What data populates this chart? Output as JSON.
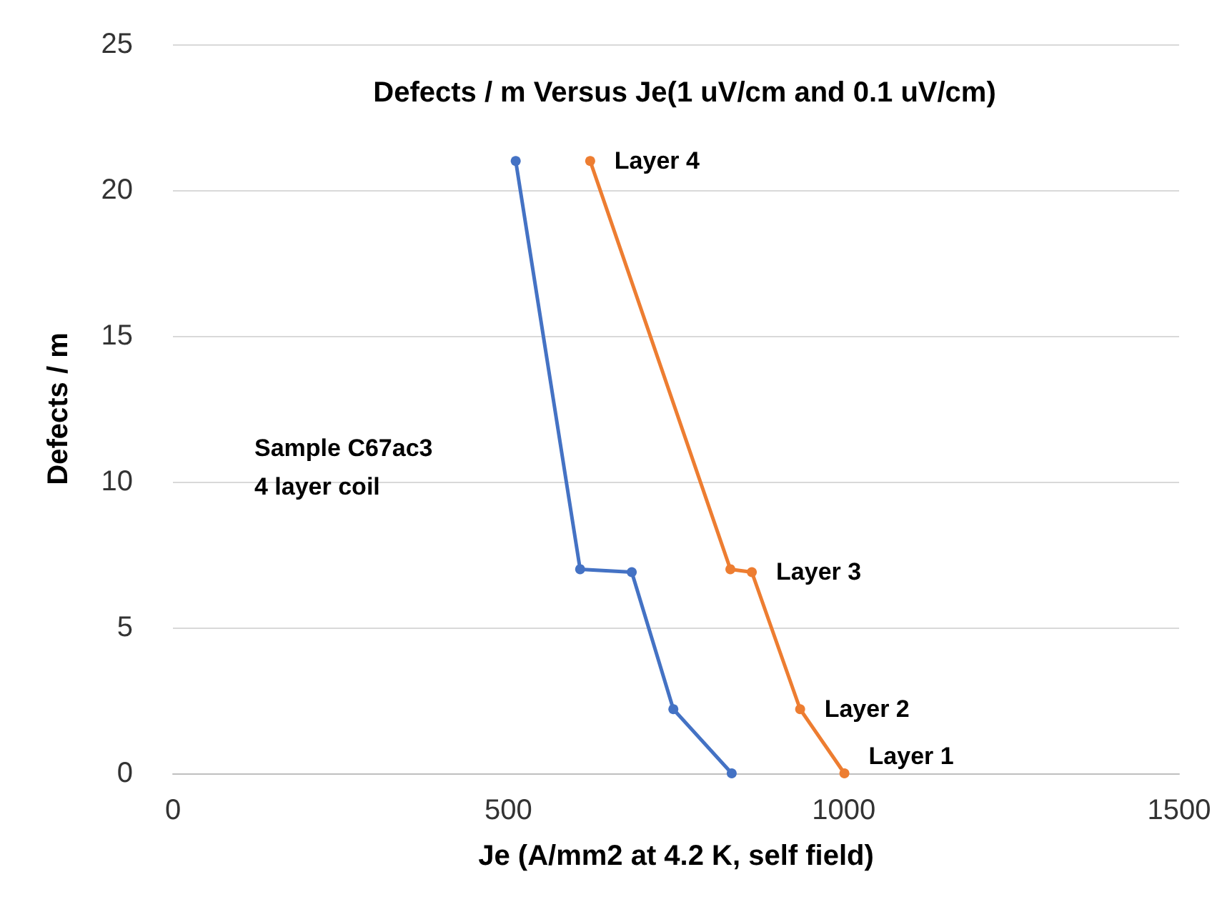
{
  "chart_data": {
    "type": "line",
    "title": "Defects / m Versus Je(1 uV/cm and 0.1 uV/cm)",
    "xlabel": "Je (A/mm2 at 4.2 K, self field)",
    "ylabel": "Defects / m",
    "series": [
      {
        "color": "#4472c4",
        "x": [
          511,
          607,
          684,
          746,
          833
        ],
        "values": [
          21.0,
          7.0,
          6.9,
          2.2,
          0
        ]
      },
      {
        "color": "#ed7d31",
        "x": [
          622,
          831,
          863,
          935,
          1001
        ],
        "values": [
          21.0,
          7.0,
          6.9,
          2.2,
          0
        ]
      }
    ],
    "xlim": [
      0,
      1500
    ],
    "xticks": [
      0,
      500,
      1000,
      1500
    ],
    "ylim": [
      0,
      25
    ],
    "yticks": [
      0,
      5,
      10,
      15,
      20,
      25
    ],
    "grid": "y",
    "marker": "circle",
    "line_style": "solid",
    "annotations": [
      {
        "text": "Layer 4",
        "x": 622,
        "y": 21.0
      },
      {
        "text": "Layer 3",
        "x": 863,
        "y": 6.9
      },
      {
        "text": "Layer 2",
        "x": 935,
        "y": 2.2
      },
      {
        "text": "Layer 1",
        "x": 1001,
        "y": 0
      },
      "Sample C67ac3\n4 layer coil"
    ]
  }
}
